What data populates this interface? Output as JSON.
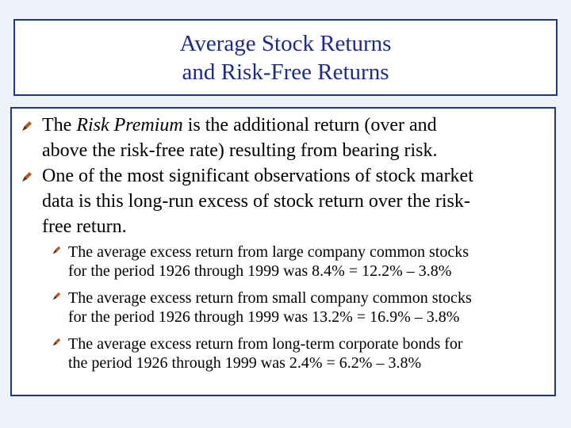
{
  "slide": {
    "title_lines": [
      "Average Stock Returns",
      "and Risk-Free Returns"
    ],
    "bullets": [
      {
        "lines": [
          {
            "pre": "The ",
            "em": "Risk Premium",
            "post": " is the additional return  (over and"
          },
          {
            "text": "above the risk-free rate) resulting from bearing risk."
          }
        ]
      },
      {
        "lines": [
          {
            "text": "One of the most significant observations of stock market"
          },
          {
            "text": "data is this long-run excess of stock return over the risk-"
          },
          {
            "text": "free return."
          }
        ]
      }
    ],
    "sub_bullets": [
      {
        "lines": [
          "The average excess return from large company common stocks",
          "for the period 1926 through 1999 was 8.4% = 12.2% – 3.8%"
        ]
      },
      {
        "lines": [
          "The average excess return from small company common stocks",
          "for the period 1926 through 1999 was 13.2% = 16.9% – 3.8%"
        ]
      },
      {
        "lines": [
          "The average excess return from long-term corporate bonds for",
          "the period 1926 through 1999 was 2.4% = 6.2% – 3.8%"
        ]
      }
    ],
    "icons": {
      "bullet": "pen-nib-bullet-icon",
      "sub_bullet": "pen-nib-bullet-icon"
    },
    "colors": {
      "title": "#1b2a8c",
      "frame_border": "#1b3591",
      "background": "#eef2f9",
      "bullet_nib": "#b5561f",
      "bullet_nib_dark": "#5a2a0e"
    }
  }
}
